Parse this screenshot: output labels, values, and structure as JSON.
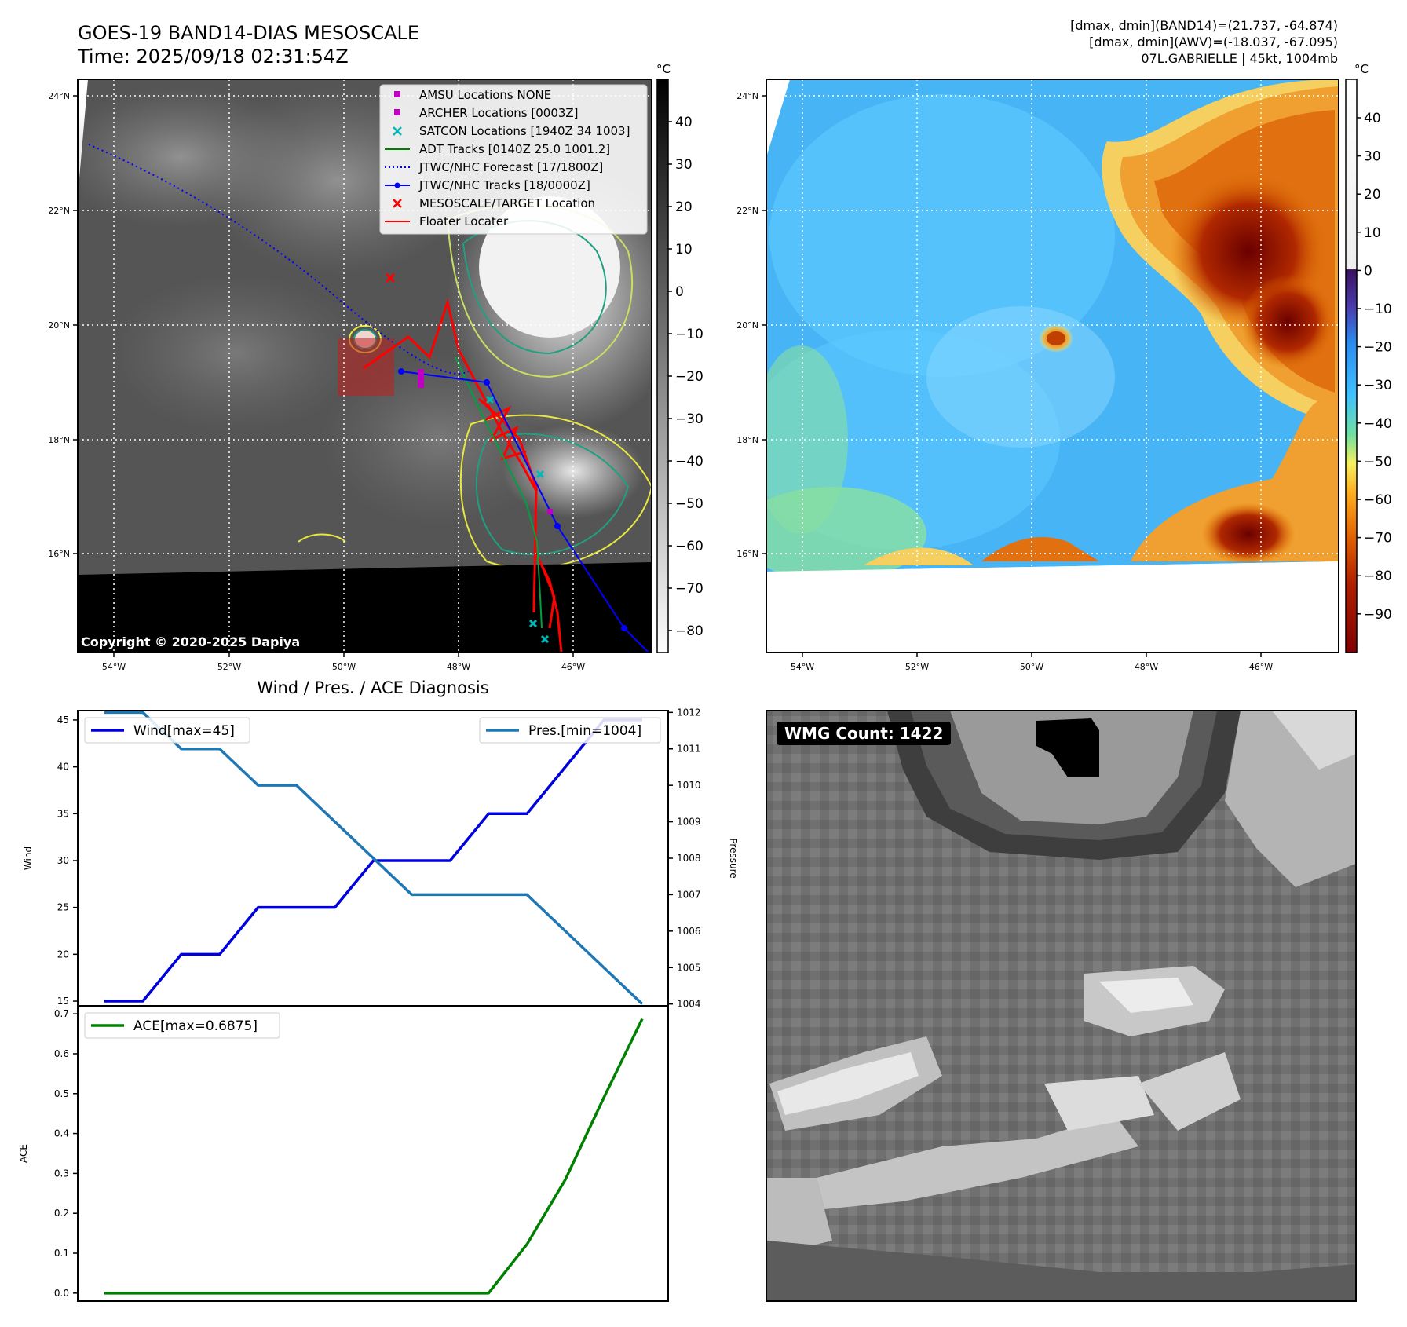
{
  "header": {
    "title_line1": "GOES-19 BAND14-DIAS MESOSCALE",
    "title_line2": "Time: 2025/09/18 02:31:54Z",
    "stats_line1": "[dmax, dmin](BAND14)=(21.737, -64.874)",
    "stats_line2": "[dmax, dmin](AWV)=(-18.037, -67.095)",
    "stats_line3": "07L.GABRIELLE | 45kt, 1004mb"
  },
  "ir_map": {
    "lat_ticks": [
      "24°N",
      "22°N",
      "20°N",
      "18°N",
      "16°N"
    ],
    "lon_ticks": [
      "54°W",
      "52°W",
      "50°W",
      "48°W",
      "46°W"
    ],
    "copyright": "Copyright © 2020-2025 Dapiya",
    "colorbar_unit": "°C",
    "colorbar_ticks": [
      "40",
      "30",
      "20",
      "10",
      "0",
      "−10",
      "−20",
      "−30",
      "−40",
      "−50",
      "−60",
      "−70",
      "−80"
    ],
    "legend": [
      {
        "label": "AMSU Locations NONE",
        "marker": "square",
        "color": "#c000c0"
      },
      {
        "label": "ARCHER Locations [0003Z]",
        "marker": "square",
        "color": "#c000c0"
      },
      {
        "label": "SATCON Locations [1940Z 34 1003]",
        "marker": "x",
        "color": "#00b8b8"
      },
      {
        "label": "ADT Tracks [0140Z 25.0 1001.2]",
        "marker": "line",
        "color": "#008000"
      },
      {
        "label": "JTWC/NHC Forecast [17/1800Z]",
        "marker": "dotted",
        "color": "#0000ff"
      },
      {
        "label": "JTWC/NHC Tracks [18/0000Z]",
        "marker": "line-dot",
        "color": "#0000ff"
      },
      {
        "label": "MESOSCALE/TARGET Location",
        "marker": "x",
        "color": "#ff0000"
      },
      {
        "label": "Floater Locater",
        "marker": "line",
        "color": "#ff0000"
      }
    ]
  },
  "awv_map": {
    "lat_ticks": [
      "24°N",
      "22°N",
      "20°N",
      "18°N",
      "16°N"
    ],
    "lon_ticks": [
      "54°W",
      "52°W",
      "50°W",
      "48°W",
      "46°W"
    ],
    "colorbar_unit": "°C",
    "colorbar_ticks": [
      "40",
      "30",
      "20",
      "10",
      "0",
      "−10",
      "−20",
      "−30",
      "−40",
      "−50",
      "−60",
      "−70",
      "−80",
      "−90"
    ]
  },
  "wmg": {
    "label": "WMG Count: 1422"
  },
  "chart_data": [
    {
      "type": "line",
      "title": "Wind / Pres. / ACE Diagnosis",
      "ylabel": "Wind",
      "y2label": "Pressure",
      "x": [
        0,
        1,
        2,
        3,
        4,
        5,
        6,
        7,
        8,
        9,
        10,
        11,
        12,
        13,
        14
      ],
      "ylim": [
        14.5,
        46
      ],
      "y2lim": [
        1003.95,
        1012.05
      ],
      "yticks": [
        15,
        20,
        25,
        30,
        35,
        40,
        45
      ],
      "y2ticks": [
        1004,
        1005,
        1006,
        1007,
        1008,
        1009,
        1010,
        1011,
        1012
      ],
      "series": [
        {
          "name": "Wind[max=45]",
          "axis": "left",
          "color": "#0000dd",
          "values": [
            15,
            15,
            20,
            20,
            25,
            25,
            25,
            30,
            30,
            30,
            35,
            35,
            40,
            45,
            45
          ]
        },
        {
          "name": "Pres.[min=1004]",
          "axis": "right",
          "color": "#1f77b4",
          "values": [
            1012,
            1012,
            1011,
            1011,
            1010,
            1010,
            1009,
            1008,
            1007,
            1007,
            1007,
            1007,
            1006,
            1005,
            1004
          ]
        }
      ]
    },
    {
      "type": "line",
      "ylabel": "ACE",
      "x": [
        0,
        1,
        2,
        3,
        4,
        5,
        6,
        7,
        8,
        9,
        10,
        11,
        12,
        13,
        14
      ],
      "ylim": [
        -0.02,
        0.72
      ],
      "yticks": [
        "0.0",
        "0.1",
        "0.2",
        "0.3",
        "0.4",
        "0.5",
        "0.6",
        "0.7"
      ],
      "series": [
        {
          "name": "ACE[max=0.6875]",
          "color": "#008000",
          "values": [
            0,
            0,
            0,
            0,
            0,
            0,
            0,
            0,
            0,
            0,
            0,
            0.1225,
            0.285,
            0.49,
            0.6875
          ]
        }
      ]
    }
  ]
}
